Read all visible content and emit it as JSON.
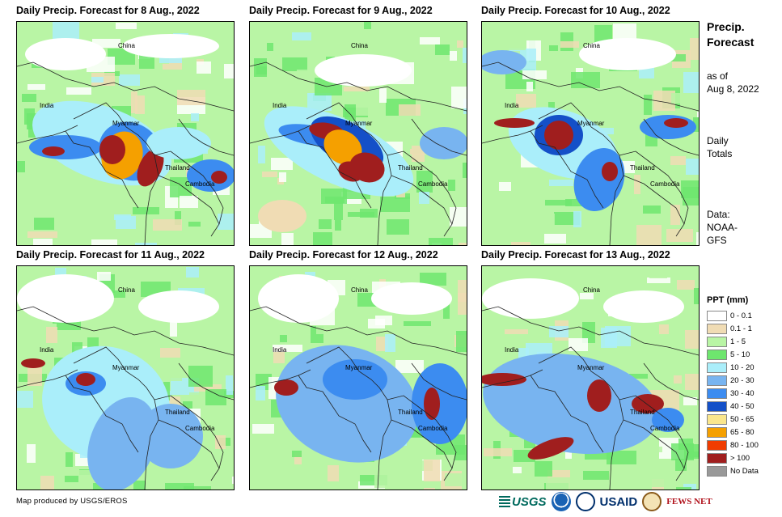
{
  "panels": [
    {
      "title": "Daily Precip. Forecast for 8 Aug., 2022"
    },
    {
      "title": "Daily Precip. Forecast for 9 Aug., 2022"
    },
    {
      "title": "Daily Precip. Forecast for 10 Aug., 2022"
    },
    {
      "title": "Daily Precip. Forecast for 11 Aug., 2022"
    },
    {
      "title": "Daily Precip. Forecast for 12 Aug., 2022"
    },
    {
      "title": "Daily Precip. Forecast for 13 Aug., 2022"
    }
  ],
  "map_labels": {
    "china": "China",
    "india": "India",
    "myanmar": "Myanmar",
    "thailand": "Thailand",
    "cambodia": "Cambodia"
  },
  "sidebar": {
    "title_line1": "Precip.",
    "title_line2": "Forecast",
    "asof_line1": "as of",
    "asof_line2": "Aug 8, 2022",
    "totals_line1": "Daily",
    "totals_line2": "Totals",
    "data_line1": "Data:",
    "data_line2": "NOAA-",
    "data_line3": "GFS"
  },
  "legend": {
    "title": "PPT (mm)",
    "items": [
      {
        "label": "0 - 0.1",
        "color": "#ffffff"
      },
      {
        "label": "0.1 - 1",
        "color": "#f0dcb4"
      },
      {
        "label": "1 - 5",
        "color": "#b9f5a5"
      },
      {
        "label": "5 - 10",
        "color": "#6ee66e"
      },
      {
        "label": "10 - 20",
        "color": "#aaeefa"
      },
      {
        "label": "20 - 30",
        "color": "#78b4f0"
      },
      {
        "label": "30 - 40",
        "color": "#3c8cf0"
      },
      {
        "label": "40 - 50",
        "color": "#1450c8"
      },
      {
        "label": "50 - 65",
        "color": "#fae68c"
      },
      {
        "label": "65 - 80",
        "color": "#f5a000"
      },
      {
        "label": "80 - 100",
        "color": "#f03c00"
      },
      {
        "label": "> 100",
        "color": "#a01e1e"
      },
      {
        "label": "No Data",
        "color": "#999999"
      }
    ]
  },
  "credit": "Map produced by USGS/EROS",
  "logos": {
    "usgs": "USGS",
    "usaid": "USAID",
    "fews": "FEWS NET"
  }
}
